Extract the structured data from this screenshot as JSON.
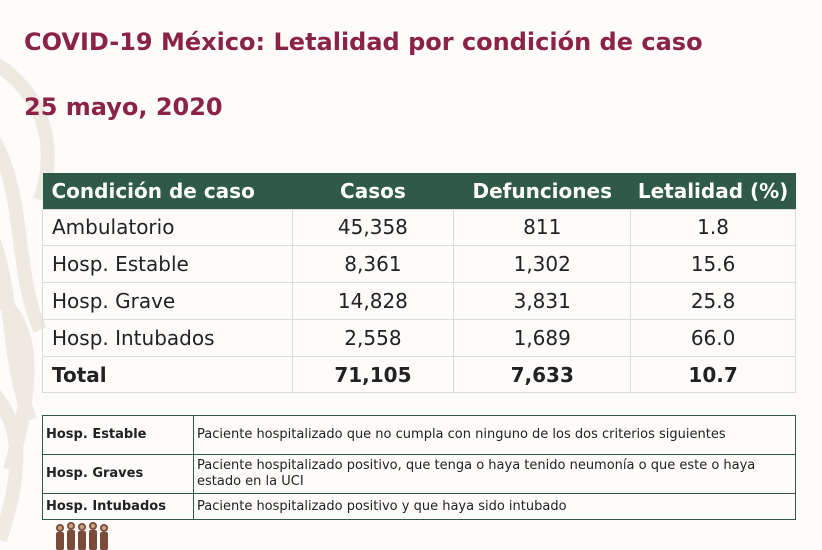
{
  "header": {
    "title": "COVID-19 México: Letalidad por condición de caso",
    "date": "25 mayo, 2020"
  },
  "table": {
    "columns": [
      "Condición de caso",
      "Casos",
      "Defunciones",
      "Letalidad (%)"
    ],
    "rows": [
      {
        "condicion": "Ambulatorio",
        "casos": "45,358",
        "defunciones": "811",
        "letalidad": "1.8"
      },
      {
        "condicion": "Hosp. Estable",
        "casos": "8,361",
        "defunciones": "1,302",
        "letalidad": "15.6"
      },
      {
        "condicion": "Hosp. Grave",
        "casos": "14,828",
        "defunciones": "3,831",
        "letalidad": "25.8"
      },
      {
        "condicion": "Hosp. Intubados",
        "casos": "2,558",
        "defunciones": "1,689",
        "letalidad": "66.0"
      }
    ],
    "total": {
      "condicion": "Total",
      "casos": "71,105",
      "defunciones": "7,633",
      "letalidad": "10.7"
    }
  },
  "legend": [
    {
      "term": "Hosp. Estable",
      "definition": "Paciente hospitalizado que no cumpla con ninguno de los dos criterios siguientes"
    },
    {
      "term": "Hosp. Graves",
      "definition": "Paciente hospitalizado positivo, que tenga o haya tenido neumonía o que este o haya estado en la UCI"
    },
    {
      "term": "Hosp. Intubados",
      "definition": "Paciente hospitalizado positivo y que haya sido intubado"
    }
  ],
  "colors": {
    "title": "#8b2346",
    "header_bg": "#2e5a47"
  }
}
